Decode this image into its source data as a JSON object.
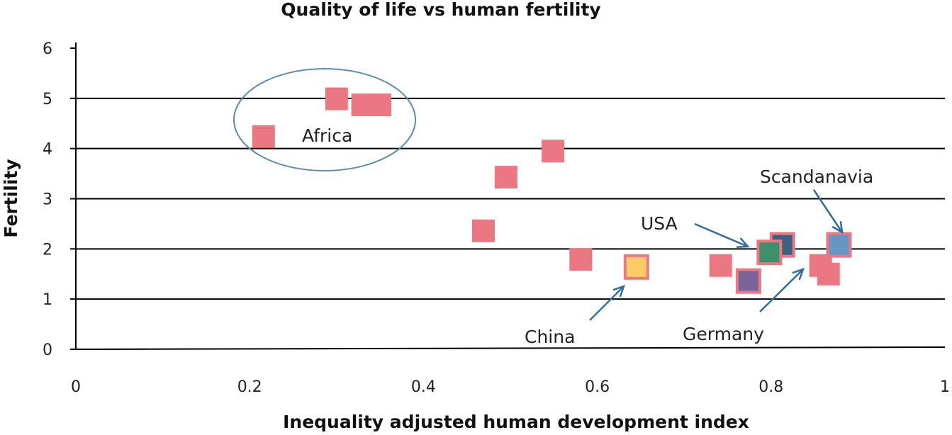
{
  "chart_data": {
    "type": "scatter",
    "title": "Quality of life vs human fertility",
    "xlabel": "Inequality adjusted human development index",
    "ylabel": "Fertility",
    "xlim": [
      0,
      1
    ],
    "ylim": [
      0,
      6
    ],
    "xticks": [
      "0",
      "0.2",
      "0.4",
      "0.6",
      "0.8",
      "1"
    ],
    "yticks": [
      "0",
      "1",
      "2",
      "3",
      "4",
      "5",
      "6"
    ],
    "grid": "horizontal",
    "points": [
      {
        "x": 0.216,
        "y": 4.24,
        "color": "#EB7783"
      },
      {
        "x": 0.3,
        "y": 4.99,
        "color": "#EB7783"
      },
      {
        "x": 0.33,
        "y": 4.87,
        "color": "#EB7783"
      },
      {
        "x": 0.35,
        "y": 4.87,
        "color": "#EB7783"
      },
      {
        "x": 0.549,
        "y": 3.95,
        "color": "#EB7783"
      },
      {
        "x": 0.495,
        "y": 3.43,
        "color": "#EB7783"
      },
      {
        "x": 0.469,
        "y": 2.36,
        "color": "#EB7783"
      },
      {
        "x": 0.581,
        "y": 1.79,
        "color": "#EB7783"
      },
      {
        "x": 0.645,
        "y": 1.64,
        "color": "#FBCB66",
        "label": "China"
      },
      {
        "x": 0.742,
        "y": 1.67,
        "color": "#EB7783"
      },
      {
        "x": 0.774,
        "y": 1.36,
        "color": "#7A6498"
      },
      {
        "x": 0.813,
        "y": 2.08,
        "color": "#3F5F80"
      },
      {
        "x": 0.798,
        "y": 1.93,
        "color": "#3E8F6C",
        "label": "USA"
      },
      {
        "x": 0.857,
        "y": 1.67,
        "color": "#EB7783",
        "label": "Germany"
      },
      {
        "x": 0.866,
        "y": 1.5,
        "color": "#EB7783"
      },
      {
        "x": 0.878,
        "y": 2.08,
        "color": "#6497C4",
        "label": "Scandanavia"
      }
    ],
    "annotations": {
      "africa": "Africa",
      "usa": "USA",
      "china": "China",
      "germany": "Germany",
      "scandanavia": "Scandanavia"
    },
    "colors": {
      "marker_border": "#EB7783",
      "annotation": "#2E6FA0",
      "ellipse": "#5A8DB0"
    }
  }
}
